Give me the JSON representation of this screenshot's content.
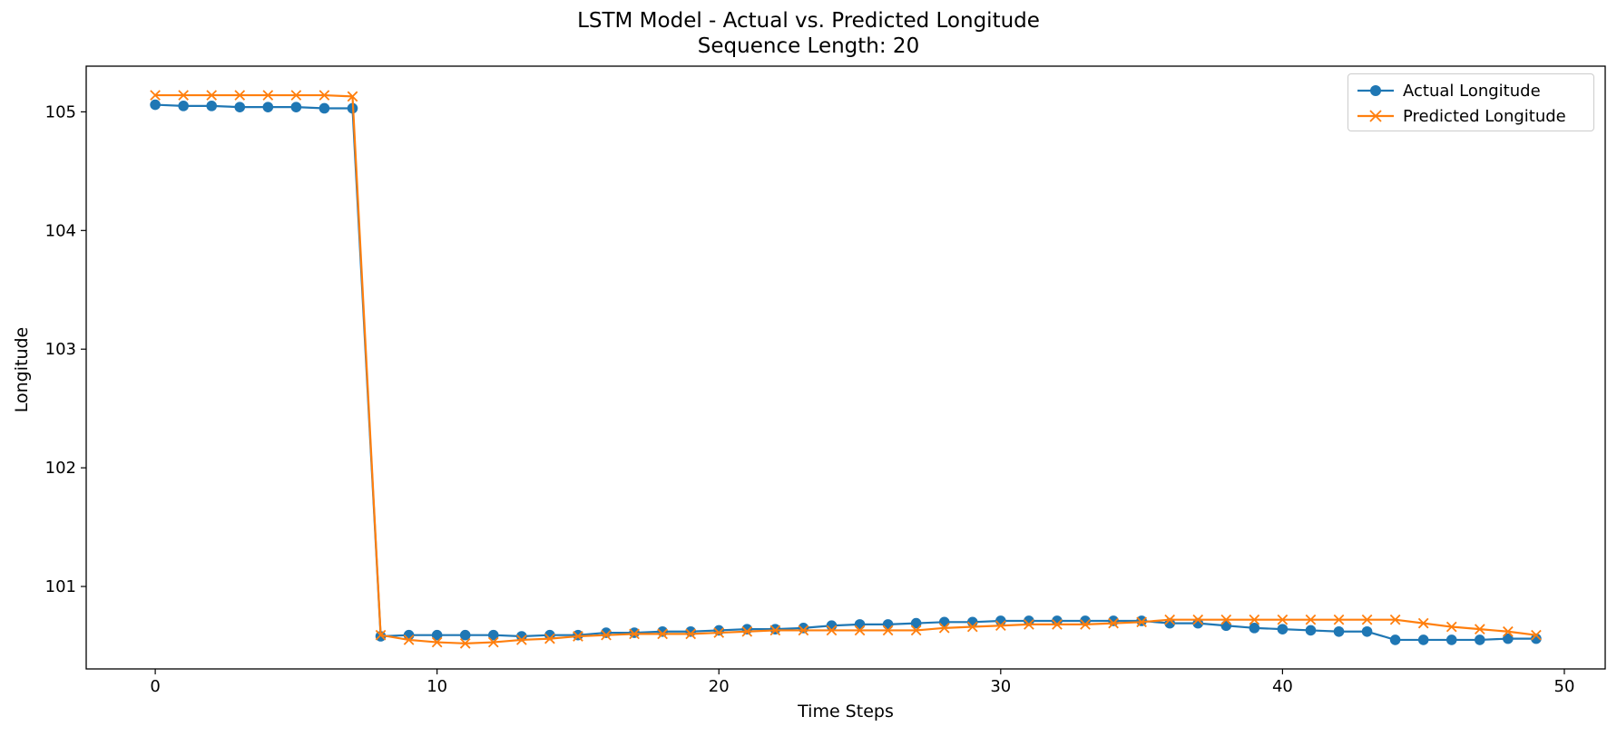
{
  "chart_data": {
    "type": "line",
    "title": "LSTM Model - Actual vs. Predicted Longitude",
    "subtitle": "Sequence Length: 20",
    "xlabel": "Time Steps",
    "ylabel": "Longitude",
    "xlim": [
      -2.45,
      51.45
    ],
    "ylim": [
      100.305,
      105.385
    ],
    "xticks": [
      0,
      10,
      20,
      30,
      40,
      50
    ],
    "yticks": [
      101,
      102,
      103,
      104,
      105
    ],
    "grid": false,
    "legend": "top-right",
    "x": [
      0,
      1,
      2,
      3,
      4,
      5,
      6,
      7,
      8,
      9,
      10,
      11,
      12,
      13,
      14,
      15,
      16,
      17,
      18,
      19,
      20,
      21,
      22,
      23,
      24,
      25,
      26,
      27,
      28,
      29,
      30,
      31,
      32,
      33,
      34,
      35,
      36,
      37,
      38,
      39,
      40,
      41,
      42,
      43,
      44,
      45,
      46,
      47,
      48,
      49
    ],
    "series": [
      {
        "name": "Actual Longitude",
        "color": "#1f77b4",
        "marker": "circle",
        "values": [
          105.06,
          105.05,
          105.05,
          105.04,
          105.04,
          105.04,
          105.03,
          105.03,
          100.58,
          100.59,
          100.59,
          100.59,
          100.59,
          100.58,
          100.59,
          100.59,
          100.61,
          100.61,
          100.62,
          100.62,
          100.63,
          100.64,
          100.64,
          100.65,
          100.67,
          100.68,
          100.68,
          100.69,
          100.7,
          100.7,
          100.71,
          100.71,
          100.71,
          100.71,
          100.71,
          100.71,
          100.69,
          100.69,
          100.67,
          100.65,
          100.64,
          100.63,
          100.62,
          100.62,
          100.55,
          100.55,
          100.55,
          100.55,
          100.56,
          100.56
        ]
      },
      {
        "name": "Predicted Longitude",
        "color": "#ff7f0e",
        "marker": "x",
        "values": [
          105.14,
          105.14,
          105.14,
          105.14,
          105.14,
          105.14,
          105.14,
          105.13,
          100.59,
          100.55,
          100.53,
          100.52,
          100.53,
          100.55,
          100.56,
          100.58,
          100.59,
          100.6,
          100.6,
          100.6,
          100.61,
          100.62,
          100.63,
          100.63,
          100.63,
          100.63,
          100.63,
          100.63,
          100.65,
          100.66,
          100.67,
          100.68,
          100.68,
          100.68,
          100.69,
          100.7,
          100.72,
          100.72,
          100.72,
          100.72,
          100.72,
          100.72,
          100.72,
          100.72,
          100.72,
          100.69,
          100.66,
          100.64,
          100.62,
          100.59
        ]
      }
    ]
  }
}
